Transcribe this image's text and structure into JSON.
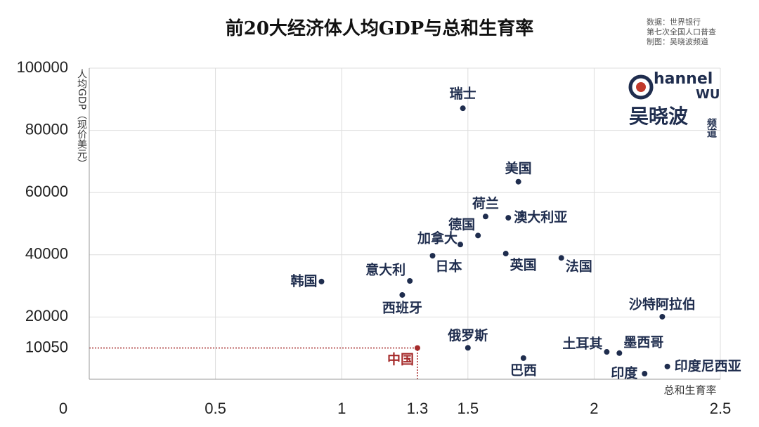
{
  "chart_data": {
    "type": "scatter",
    "title": "前20大经济体人均GDP与总和生育率",
    "source": [
      "数据：世界银行",
      "第七次全国人口普查",
      "制图：吴晓波频道"
    ],
    "logo": {
      "top": "hannel",
      "bottom": "WU",
      "name": "吴晓波",
      "sub": "频道"
    },
    "xlabel": "总和生育率",
    "ylabel": "人均GDP（现价美元）",
    "labels": [
      "瑞士",
      "美国",
      "荷兰",
      "澳大利亚",
      "德国",
      "加拿大",
      "日本",
      "英国",
      "法国",
      "韩国",
      "意大利",
      "西班牙",
      "沙特阿拉伯",
      "俄罗斯",
      "中国",
      "巴西",
      "土耳其",
      "墨西哥",
      "印度",
      "印度尼西亚"
    ],
    "x": [
      1.48,
      1.7,
      1.57,
      1.66,
      1.54,
      1.47,
      1.36,
      1.65,
      1.87,
      0.92,
      1.27,
      1.24,
      2.27,
      1.5,
      1.3,
      1.72,
      2.05,
      2.1,
      2.2,
      2.29
    ],
    "values": [
      87100,
      63500,
      52300,
      51900,
      46200,
      43300,
      39700,
      40400,
      39000,
      31400,
      31600,
      27100,
      20100,
      10100,
      10050,
      6800,
      8800,
      8400,
      1800,
      4100
    ],
    "color": "#1f2d4e",
    "highlight": {
      "x": 1.3,
      "y": 10050,
      "color": "#a52a2a"
    },
    "xlim": [
      0,
      2.5
    ],
    "ylim": [
      0,
      100000
    ],
    "xticks": [
      0,
      0.5,
      1,
      1.3,
      1.5,
      2,
      2.5
    ],
    "yticks": [
      10050,
      20000,
      40000,
      60000,
      80000,
      100000
    ],
    "grid": true
  }
}
